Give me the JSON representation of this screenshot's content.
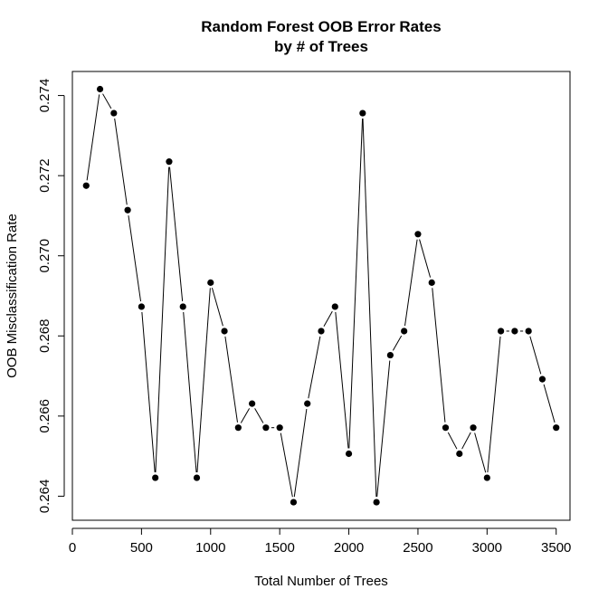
{
  "chart_data": {
    "type": "line",
    "title_line1": "Random Forest OOB Error Rates",
    "title_line2": "by # of Trees",
    "xlabel": "Total Number of Trees",
    "ylabel": "OOB Misclassification Rate",
    "xlim": [
      0,
      3600
    ],
    "ylim": [
      0.2634,
      0.2746
    ],
    "xticks": [
      0,
      500,
      1000,
      1500,
      2000,
      2500,
      3000,
      3500
    ],
    "yticks": [
      0.264,
      0.266,
      0.268,
      0.27,
      0.272,
      0.274
    ],
    "ytick_labels": [
      "0.264",
      "0.266",
      "0.268",
      "0.270",
      "0.272",
      "0.274"
    ],
    "grid": false,
    "colors": {
      "line": "#000000",
      "point": "#000000"
    },
    "x": [
      100,
      200,
      300,
      400,
      500,
      600,
      700,
      800,
      900,
      1000,
      1100,
      1200,
      1300,
      1400,
      1500,
      1600,
      1700,
      1800,
      1900,
      2000,
      2100,
      2200,
      2300,
      2400,
      2500,
      2600,
      2700,
      2800,
      2900,
      3000,
      3100,
      3200,
      3300,
      3400,
      3500
    ],
    "y": [
      0.27175,
      0.27416,
      0.27356,
      0.27114,
      0.26873,
      0.26446,
      0.27235,
      0.26873,
      0.26446,
      0.26933,
      0.26812,
      0.26571,
      0.26631,
      0.26571,
      0.26571,
      0.26385,
      0.26631,
      0.26812,
      0.26873,
      0.26506,
      0.27356,
      0.26385,
      0.26752,
      0.26812,
      0.27054,
      0.26933,
      0.26571,
      0.26506,
      0.26571,
      0.26446,
      0.26812,
      0.26812,
      0.26812,
      0.26692,
      0.26571
    ]
  }
}
